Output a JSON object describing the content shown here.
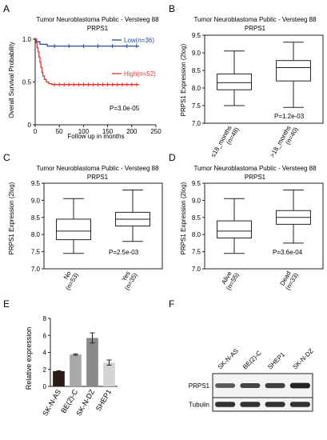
{
  "panel_letters": [
    "A",
    "B",
    "C",
    "D",
    "E",
    "F"
  ],
  "chart_data": [
    {
      "panel": "A",
      "type": "line",
      "title": "Tumor Neuroblastoma Public - Versteeg  88",
      "subtitle": "PRPS1",
      "xlabel": "Follow up in months",
      "ylabel": "Overall Survival Probability",
      "xlim": [
        0,
        250
      ],
      "ylim": [
        0,
        1.0
      ],
      "xticks": [
        "0",
        "50",
        "100",
        "150",
        "200",
        "250"
      ],
      "yticks": [
        "0",
        "0.5",
        "1.0"
      ],
      "legend_position": "top-right",
      "annotation": "P=3.0e-05",
      "series": [
        {
          "name": "Low(n=36)",
          "color": "#1f4e9e",
          "points": [
            [
              0,
              1.0
            ],
            [
              3,
              1.0
            ],
            [
              3,
              0.97
            ],
            [
              10,
              0.97
            ],
            [
              10,
              0.94
            ],
            [
              25,
              0.94
            ],
            [
              25,
              0.92
            ],
            [
              215,
              0.92
            ]
          ],
          "censor_x": [
            40,
            70,
            100,
            130,
            160,
            190,
            210
          ]
        },
        {
          "name": "High(n=52)",
          "color": "#e8332a",
          "points": [
            [
              0,
              1.0
            ],
            [
              2,
              1.0
            ],
            [
              2,
              0.96
            ],
            [
              4,
              0.96
            ],
            [
              4,
              0.9
            ],
            [
              6,
              0.9
            ],
            [
              6,
              0.85
            ],
            [
              8,
              0.85
            ],
            [
              8,
              0.79
            ],
            [
              10,
              0.79
            ],
            [
              10,
              0.73
            ],
            [
              12,
              0.73
            ],
            [
              12,
              0.67
            ],
            [
              14,
              0.67
            ],
            [
              14,
              0.61
            ],
            [
              16,
              0.61
            ],
            [
              16,
              0.57
            ],
            [
              19,
              0.57
            ],
            [
              19,
              0.53
            ],
            [
              23,
              0.53
            ],
            [
              23,
              0.5
            ],
            [
              28,
              0.5
            ],
            [
              28,
              0.48
            ],
            [
              35,
              0.48
            ],
            [
              35,
              0.47
            ],
            [
              215,
              0.47
            ]
          ],
          "censor_x": [
            40,
            50,
            60,
            70,
            80,
            90,
            100,
            110,
            120,
            130,
            140,
            150,
            160,
            170,
            180,
            190,
            200,
            210
          ]
        }
      ]
    },
    {
      "panel": "B",
      "type": "box",
      "title": "Tumor Neuroblastoma Public - Versteeg  88",
      "subtitle": "PRPS1",
      "ylabel": "PRPS1 Expression (2log)",
      "ylim": [
        7.0,
        9.5
      ],
      "yticks": [
        "7.0",
        "7.5",
        "8.0",
        "8.5",
        "9.0",
        "9.5"
      ],
      "categories": [
        "≤18_months",
        ">18_months"
      ],
      "sublabels": [
        "(n=48)",
        "(n=40)"
      ],
      "boxes": [
        {
          "min": 7.5,
          "q1": 7.95,
          "median": 8.15,
          "q3": 8.4,
          "max": 9.05
        },
        {
          "min": 7.45,
          "q1": 8.2,
          "median": 8.58,
          "q3": 8.78,
          "max": 9.3
        }
      ],
      "annotation": "P=1.2e-03"
    },
    {
      "panel": "C",
      "type": "box",
      "title": "Tumor Neuroblastoma Public - Versteeg  88",
      "subtitle": "PRPS1",
      "ylabel": "PRPS1 Expression (2log)",
      "ylim": [
        7.0,
        9.5
      ],
      "yticks": [
        "7.0",
        "7.5",
        "8.0",
        "8.5",
        "9.0",
        "9.5"
      ],
      "categories": [
        "No",
        "Yes"
      ],
      "sublabels": [
        "(n=53)",
        "(n=35)"
      ],
      "boxes": [
        {
          "min": 7.45,
          "q1": 7.85,
          "median": 8.1,
          "q3": 8.45,
          "max": 9.05
        },
        {
          "min": 7.8,
          "q1": 8.25,
          "median": 8.45,
          "q3": 8.65,
          "max": 9.3
        }
      ],
      "annotation": "P=2.5e-03"
    },
    {
      "panel": "D",
      "type": "box",
      "title": "Tumor Neuroblastoma Public - Versteeg  88",
      "subtitle": "PRPS1",
      "ylabel": "PRPS1 Expression (2log)",
      "ylim": [
        7.0,
        9.5
      ],
      "yticks": [
        "7.0",
        "7.5",
        "8.0",
        "8.5",
        "9.0",
        "9.5"
      ],
      "categories": [
        "Alive",
        "Dead"
      ],
      "sublabels": [
        "(n=55)",
        "(n=33)"
      ],
      "boxes": [
        {
          "min": 7.45,
          "q1": 7.9,
          "median": 8.1,
          "q3": 8.4,
          "max": 9.05
        },
        {
          "min": 7.75,
          "q1": 8.3,
          "median": 8.5,
          "q3": 8.7,
          "max": 9.3
        }
      ],
      "annotation": "P=3.6e-04"
    },
    {
      "panel": "E",
      "type": "bar",
      "ylabel": "Relative expression",
      "ylim": [
        0,
        8
      ],
      "yticks": [
        "0",
        "2",
        "4",
        "6",
        "8"
      ],
      "categories": [
        "SK-N-AS",
        "BE(2)-C",
        "SK-N-DZ",
        "SHEP1"
      ],
      "values": [
        1.8,
        3.75,
        5.7,
        2.8
      ],
      "errors": [
        0.05,
        0.08,
        0.6,
        0.3
      ],
      "colors": [
        "#2b1d16",
        "#a9a9a9",
        "#8a8a8a",
        "#d4d4d4"
      ]
    }
  ],
  "blot": {
    "lanes": [
      "SK-N-AS",
      "BE(2)-C",
      "SHEP1",
      "SK-N-DZ"
    ],
    "rows": [
      {
        "label": "PRPS1",
        "intensity": [
          0.55,
          0.7,
          0.75,
          0.95
        ]
      },
      {
        "label": "Tubulin",
        "intensity": [
          0.85,
          0.85,
          0.85,
          0.85
        ]
      }
    ]
  }
}
